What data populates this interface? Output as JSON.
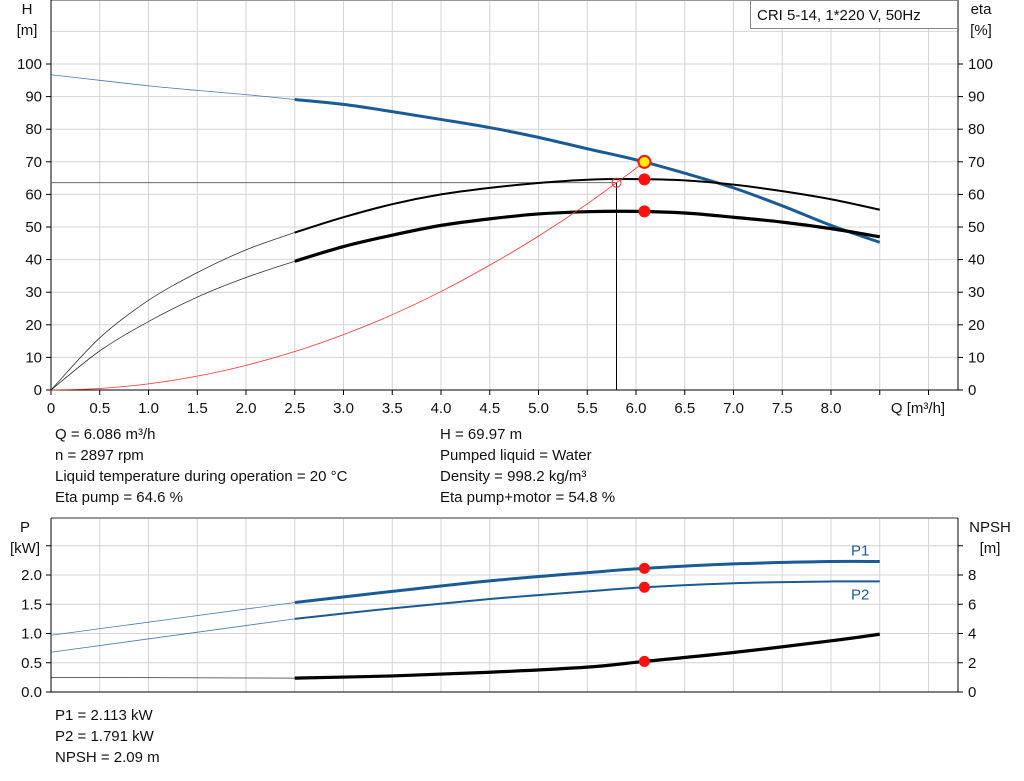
{
  "chart_data": [
    {
      "type": "line",
      "title": "CRI 5-14, 1*220 V, 50Hz",
      "xlabel": "Q [m³/h]",
      "ylabel_left": "H\n[m]",
      "ylabel_left_lines": [
        "H",
        "[m]"
      ],
      "ylabel_right_lines": [
        "eta",
        "[%]"
      ],
      "xlim": [
        0,
        9.3
      ],
      "ylim": [
        0,
        100
      ],
      "xticks": [
        "0",
        "0.5",
        "1.0",
        "1.5",
        "2.0",
        "2.5",
        "3.0",
        "3.5",
        "4.0",
        "4.5",
        "5.0",
        "5.5",
        "6.0",
        "6.5",
        "7.0",
        "7.5",
        "8.0"
      ],
      "yticks": [
        "0",
        "10",
        "20",
        "30",
        "40",
        "50",
        "60",
        "70",
        "80",
        "90",
        "100"
      ],
      "grid": true,
      "series": [
        {
          "id": "head",
          "color": "#1a5a96",
          "thin_until": 2.5,
          "x": [
            0,
            0.5,
            1,
            1.5,
            2,
            2.5,
            3,
            3.5,
            4,
            4.5,
            5,
            5.5,
            6,
            6.5,
            7,
            7.5,
            8,
            8.5
          ],
          "y": [
            96.7,
            95,
            93.3,
            91.9,
            90.6,
            89.1,
            87.6,
            85.4,
            83,
            80.5,
            77.5,
            74,
            70.6,
            66.5,
            62,
            56.5,
            50.5,
            45.3
          ]
        },
        {
          "id": "eta-pump",
          "color": "#000000",
          "thin_until": 2.5,
          "x": [
            0,
            0.5,
            1,
            1.5,
            2,
            2.5,
            3,
            3.5,
            4,
            4.5,
            5,
            5.5,
            6,
            6.5,
            7,
            7.5,
            8,
            8.5
          ],
          "y": [
            0,
            16,
            27.5,
            36,
            43,
            48.3,
            53,
            57,
            60,
            62,
            63.5,
            64.5,
            64.7,
            64.3,
            63,
            61,
            58.5,
            55.3
          ]
        },
        {
          "id": "eta-pump-motor",
          "color": "#000000",
          "thin_until": 2.5,
          "x": [
            0,
            0.5,
            1,
            1.5,
            2,
            2.5,
            3,
            3.5,
            4,
            4.5,
            5,
            5.5,
            6,
            6.5,
            7,
            7.5,
            8,
            8.5
          ],
          "y": [
            0,
            12,
            21,
            28.5,
            34.5,
            39.5,
            44,
            47.5,
            50.5,
            52.5,
            54,
            54.7,
            54.8,
            54.3,
            53,
            51.5,
            49.5,
            47
          ]
        },
        {
          "id": "system-curve",
          "color": "#ff3030",
          "x": [
            0,
            0.5,
            1,
            1.5,
            2,
            2.5,
            3,
            3.5,
            4,
            4.5,
            5,
            5.5,
            6,
            6.086
          ],
          "y": [
            0,
            0.47,
            1.89,
            4.25,
            7.56,
            11.8,
            17,
            23.1,
            30.2,
            38.3,
            47.2,
            57.1,
            68,
            69.97
          ]
        }
      ],
      "operating_point": {
        "Q": 6.086,
        "H": 69.97,
        "eta_pump": 64.6,
        "eta_pump_motor": 54.8
      },
      "reference_point": {
        "Q": 5.8,
        "eta": 63.6
      }
    },
    {
      "type": "line",
      "ylabel_left_lines": [
        "P",
        "[kW]"
      ],
      "ylabel_right_lines": [
        "NPSH",
        "[m]"
      ],
      "xlim": [
        0,
        9.3
      ],
      "ylim": [
        0,
        3
      ],
      "ylim_right": [
        0,
        12
      ],
      "yticks": [
        "0.0",
        "0.5",
        "1.0",
        "1.5",
        "2.0"
      ],
      "yticks_right": [
        "0",
        "2",
        "4",
        "6",
        "8"
      ],
      "grid": true,
      "series": [
        {
          "id": "P1",
          "name": "P1",
          "color": "#1a5a96",
          "thin_until": 2.5,
          "x": [
            0,
            2.5,
            3.5,
            4.5,
            5.5,
            6.086,
            7,
            8,
            8.5
          ],
          "y": [
            0.97,
            1.53,
            1.72,
            1.9,
            2.04,
            2.113,
            2.19,
            2.23,
            2.23
          ]
        },
        {
          "id": "P2",
          "name": "P2",
          "color": "#1a5a96",
          "thin_until": 2.5,
          "x": [
            0,
            2.5,
            3.5,
            4.5,
            5.5,
            6.086,
            7,
            8,
            8.5
          ],
          "y": [
            0.68,
            1.25,
            1.43,
            1.59,
            1.72,
            1.791,
            1.86,
            1.89,
            1.89
          ]
        },
        {
          "id": "NPSH",
          "color": "#000000",
          "axis": "right",
          "thin_until": 2.5,
          "x": [
            0,
            2.5,
            3.5,
            4.5,
            5.5,
            6.086,
            7,
            8,
            8.5
          ],
          "y": [
            1.0,
            0.95,
            1.1,
            1.35,
            1.7,
            2.09,
            2.7,
            3.5,
            3.95
          ]
        }
      ],
      "operating_point": {
        "Q": 6.086,
        "P1": 2.113,
        "P2": 1.791,
        "NPSH": 2.09
      }
    }
  ],
  "info_top_left": [
    "Q = 6.086 m³/h",
    "n = 2897 rpm",
    "Liquid temperature during operation = 20 °C",
    "Eta pump = 64.6 %"
  ],
  "info_top_right": [
    "H = 69.97 m",
    "Pumped liquid = Water",
    "Density = 998.2 kg/m³",
    "Eta pump+motor = 54.8 %"
  ],
  "info_bottom": [
    "P1 = 2.113 kW",
    "P2 = 1.791 kW",
    "NPSH = 2.09 m"
  ]
}
